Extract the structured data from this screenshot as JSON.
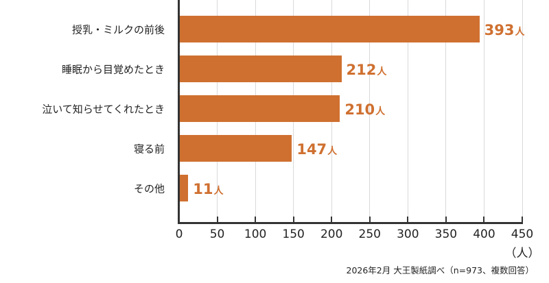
{
  "chart_data": {
    "type": "bar",
    "orientation": "horizontal",
    "categories": [
      "授乳・ミルクの前後",
      "睡眠から目覚めたとき",
      "泣いて知らせてくれたとき",
      "寝る前",
      "その他"
    ],
    "values": [
      393,
      212,
      210,
      147,
      11
    ],
    "value_labels": [
      "393",
      "212",
      "210",
      "147",
      "11"
    ],
    "value_unit": "人",
    "xlabel": "（人）",
    "ylabel": "",
    "xlim": [
      0,
      450
    ],
    "xticks": [
      "0",
      "50",
      "100",
      "150",
      "200",
      "250",
      "300",
      "350",
      "400",
      "450"
    ],
    "grid": "vertical",
    "bar_color": "#cf7030",
    "source_note": "2026年2月 大王製紙調べ（n=973、複数回答）"
  }
}
